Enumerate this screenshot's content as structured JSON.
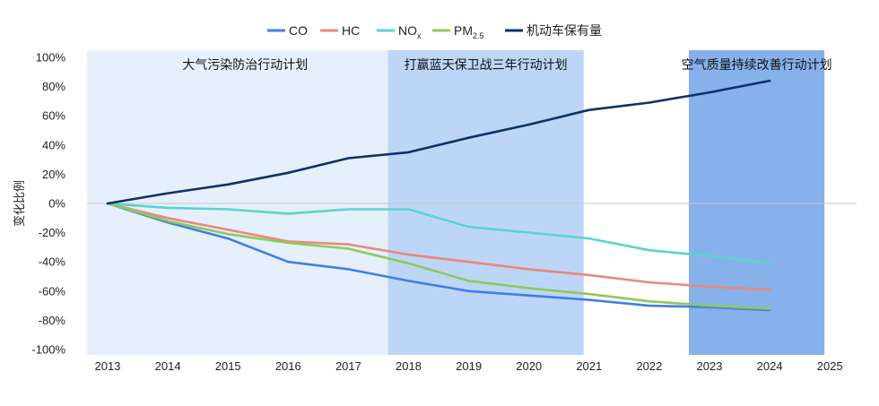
{
  "chart_data": {
    "type": "line",
    "xlabel": "",
    "ylabel": "变化比例",
    "ylim": [
      -100,
      100
    ],
    "yticks": [
      "100%",
      "80%",
      "60%",
      "40%",
      "20%",
      "0%",
      "-20%",
      "-40%",
      "-60%",
      "-80%",
      "-100%"
    ],
    "categories": [
      "2013",
      "2014",
      "2015",
      "2016",
      "2017",
      "2018",
      "2019",
      "2020",
      "2021",
      "2022",
      "2023",
      "2024",
      "2025"
    ],
    "legend_position": "top",
    "grid": false,
    "bands": [
      {
        "label": "大气污染防治行动计划",
        "from": 2013,
        "to": 2018,
        "color": "#e6f0fd"
      },
      {
        "label": "打赢蓝天保卫战三年行动计划",
        "from": 2018,
        "to": 2021,
        "color": "#bdd6f8"
      },
      {
        "label": "空气质量持续改善行动计划",
        "from": 2023,
        "to": 2025,
        "color": "#86b1eb"
      }
    ],
    "series": [
      {
        "name": "CO",
        "sub": "",
        "color": "#3f7fe6",
        "values": [
          0,
          -13,
          -24,
          -40,
          -45,
          -53,
          -60,
          -63,
          -66,
          -70,
          -71,
          -73,
          null
        ]
      },
      {
        "name": "HC",
        "sub": "",
        "color": "#e88a7b",
        "values": [
          0,
          -10,
          -18,
          -26,
          -28,
          -35,
          -40,
          -45,
          -49,
          -54,
          -57,
          -59,
          null
        ]
      },
      {
        "name": "NO",
        "sub": "x",
        "color": "#5ad4cc",
        "values": [
          0,
          -3,
          -4,
          -7,
          -4,
          -4,
          -16,
          -20,
          -24,
          -32,
          -36,
          -41,
          null
        ]
      },
      {
        "name": "PM",
        "sub": "2.5",
        "color": "#8ec95a",
        "values": [
          0,
          -12,
          -21,
          -27,
          -31,
          -41,
          -53,
          -58,
          -62,
          -67,
          -70,
          -72,
          null
        ]
      },
      {
        "name": "机动车保有量",
        "sub": "",
        "color": "#10306b",
        "values": [
          0,
          7,
          13,
          21,
          31,
          35,
          45,
          54,
          64,
          69,
          76,
          84,
          null
        ]
      }
    ]
  }
}
